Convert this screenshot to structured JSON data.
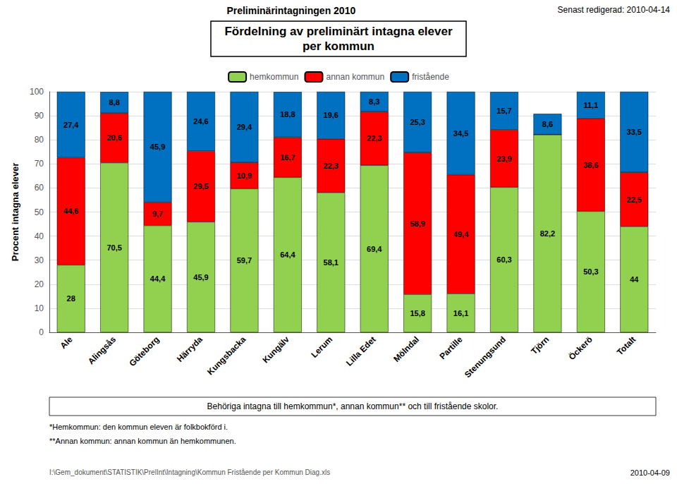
{
  "chart_data": {
    "type": "bar",
    "stacked": true,
    "title": "Fördelning av preliminärt intagna elever",
    "subtitle": "per kommun",
    "ylabel": "Procent intagna elever",
    "categories": [
      "Ale",
      "Alingsås",
      "Göteborg",
      "Härryda",
      "Kungsbacka",
      "Kungälv",
      "Lerum",
      "Lilla Edet",
      "Mölndal",
      "Partille",
      "Stenungsund",
      "Tjörn",
      "Öckerö",
      "Totalt"
    ],
    "series": [
      {
        "name": "hemkommun",
        "color": "#92d050",
        "values": [
          28.0,
          70.5,
          44.4,
          45.9,
          59.7,
          64.4,
          58.1,
          69.4,
          15.8,
          16.1,
          60.3,
          82.2,
          50.3,
          44.0
        ],
        "value_labels": [
          "28",
          "70,5",
          "44,4",
          "45,9",
          "59,7",
          "64,4",
          "58,1",
          "69,4",
          "15,8",
          "16,1",
          "60,3",
          "82,2",
          "50,3",
          "44"
        ]
      },
      {
        "name": "annan kommun",
        "color": "#ff0000",
        "values": [
          44.6,
          20.6,
          9.7,
          29.5,
          10.9,
          16.7,
          22.3,
          22.3,
          58.9,
          49.4,
          23.9,
          0.0,
          38.6,
          22.5
        ],
        "value_labels": [
          "44,6",
          "20,6",
          "9,7",
          "29,5",
          "10,9",
          "16,7",
          "22,3",
          "22,3",
          "58,9",
          "49,4",
          "23,9",
          null,
          "38,6",
          "22,5"
        ]
      },
      {
        "name": "fristående",
        "color": "#0070c0",
        "values": [
          27.4,
          8.8,
          45.9,
          24.6,
          29.4,
          18.8,
          19.6,
          8.3,
          25.3,
          34.5,
          15.7,
          8.6,
          11.1,
          33.5
        ],
        "value_labels": [
          "27,4",
          "8,8",
          "45,9",
          "24,6",
          "29,4",
          "18,8",
          "19,6",
          "8,3",
          "25,3",
          "34,5",
          "15,7",
          "8,6",
          "11,1",
          "33,5"
        ]
      }
    ],
    "ylim": [
      0,
      100
    ],
    "yticks": [
      0,
      10,
      20,
      30,
      40,
      50,
      60,
      70,
      80,
      90,
      100
    ],
    "grid": true,
    "legend": "top",
    "data_labels": true,
    "annotations": [
      "Preliminärintagningen 2010",
      "Senast redigerad: 2010-04-14",
      "Behöriga intagna till hemkommun*, annan kommun** och till fristående skolor.",
      "*Hemkommun: den kommun eleven är folkbokförd i.",
      "**Annan kommun: annan kommun än hemkommunen.",
      "I:\\Gem_dokument\\STATISTIK\\PrelInt\\Intagning\\Kommun Fristående per Kommun Diag.xls",
      "2010-04-09"
    ]
  }
}
